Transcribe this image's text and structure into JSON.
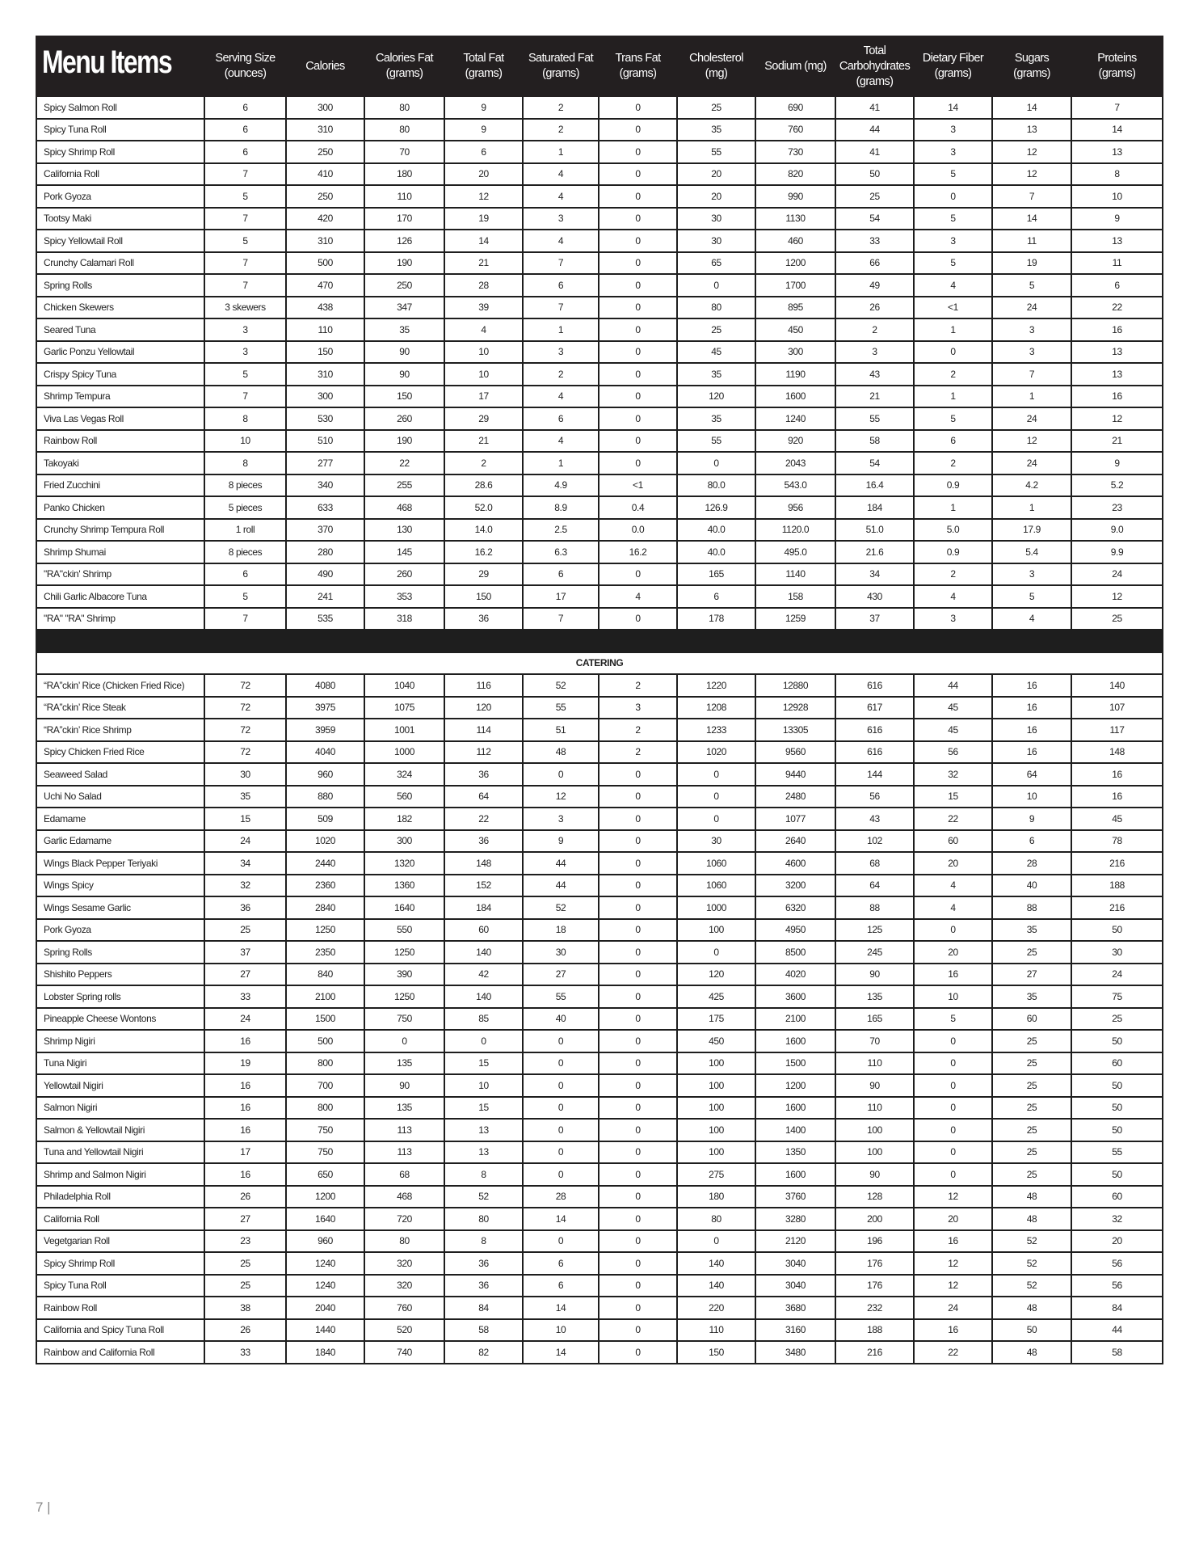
{
  "header": {
    "title": "Menu Items",
    "columns": [
      "Serving Size\n(ounces)",
      "Calories",
      "Calories Fat\n(grams)",
      "Total Fat\n(grams)",
      "Saturated Fat\n(grams)",
      "Trans Fat\n(grams)",
      "Cholesterol\n(mg)",
      "Sodium  (mg)",
      "Total\nCarbohydrates\n(grams)",
      "Dietary Fiber\n(grams)",
      "Sugars\n(grams)",
      "Proteins\n(grams)"
    ]
  },
  "menu_rows": [
    [
      "Spicy Salmon Roll",
      "6",
      "300",
      "80",
      "9",
      "2",
      "0",
      "25",
      "690",
      "41",
      "14",
      "14",
      "7"
    ],
    [
      "Spicy Tuna Roll",
      "6",
      "310",
      "80",
      "9",
      "2",
      "0",
      "35",
      "760",
      "44",
      "3",
      "13",
      "14"
    ],
    [
      "Spicy Shrimp Roll",
      "6",
      "250",
      "70",
      "6",
      "1",
      "0",
      "55",
      "730",
      "41",
      "3",
      "12",
      "13"
    ],
    [
      "California Roll",
      "7",
      "410",
      "180",
      "20",
      "4",
      "0",
      "20",
      "820",
      "50",
      "5",
      "12",
      "8"
    ],
    [
      "Pork Gyoza",
      "5",
      "250",
      "110",
      "12",
      "4",
      "0",
      "20",
      "990",
      "25",
      "0",
      "7",
      "10"
    ],
    [
      "Tootsy Maki",
      "7",
      "420",
      "170",
      "19",
      "3",
      "0",
      "30",
      "1130",
      "54",
      "5",
      "14",
      "9"
    ],
    [
      "Spicy Yellowtail Roll",
      "5",
      "310",
      "126",
      "14",
      "4",
      "0",
      "30",
      "460",
      "33",
      "3",
      "11",
      "13"
    ],
    [
      "Crunchy Calamari Roll",
      "7",
      "500",
      "190",
      "21",
      "7",
      "0",
      "65",
      "1200",
      "66",
      "5",
      "19",
      "11"
    ],
    [
      "Spring Rolls",
      "7",
      "470",
      "250",
      "28",
      "6",
      "0",
      "0",
      "1700",
      "49",
      "4",
      "5",
      "6"
    ],
    [
      "Chicken Skewers",
      "3 skewers",
      "438",
      "347",
      "39",
      "7",
      "0",
      "80",
      "895",
      "26",
      "<1",
      "24",
      "22"
    ],
    [
      "Seared Tuna",
      "3",
      "110",
      "35",
      "4",
      "1",
      "0",
      "25",
      "450",
      "2",
      "1",
      "3",
      "16"
    ],
    [
      "Garlic Ponzu Yellowtail",
      "3",
      "150",
      "90",
      "10",
      "3",
      "0",
      "45",
      "300",
      "3",
      "0",
      "3",
      "13"
    ],
    [
      "Crispy Spicy Tuna",
      "5",
      "310",
      "90",
      "10",
      "2",
      "0",
      "35",
      "1190",
      "43",
      "2",
      "7",
      "13"
    ],
    [
      "Shrimp Tempura",
      "7",
      "300",
      "150",
      "17",
      "4",
      "0",
      "120",
      "1600",
      "21",
      "1",
      "1",
      "16"
    ],
    [
      "Viva Las Vegas Roll",
      "8",
      "530",
      "260",
      "29",
      "6",
      "0",
      "35",
      "1240",
      "55",
      "5",
      "24",
      "12"
    ],
    [
      "Rainbow Roll",
      "10",
      "510",
      "190",
      "21",
      "4",
      "0",
      "55",
      "920",
      "58",
      "6",
      "12",
      "21"
    ],
    [
      "Takoyaki",
      "8",
      "277",
      "22",
      "2",
      "1",
      "0",
      "0",
      "2043",
      "54",
      "2",
      "24",
      "9"
    ],
    [
      "Fried Zucchini",
      "8 pieces",
      "340",
      "255",
      "28.6",
      "4.9",
      "<1",
      "80.0",
      "543.0",
      "16.4",
      "0.9",
      "4.2",
      "5.2"
    ],
    [
      "Panko Chicken",
      "5 pieces",
      "633",
      "468",
      "52.0",
      "8.9",
      "0.4",
      "126.9",
      "956",
      "184",
      "1",
      "1",
      "23"
    ],
    [
      "Crunchy Shrimp Tempura Roll",
      "1 roll",
      "370",
      "130",
      "14.0",
      "2.5",
      "0.0",
      "40.0",
      "1120.0",
      "51.0",
      "5.0",
      "17.9",
      "9.0"
    ],
    [
      "Shrimp Shumai",
      "8 pieces",
      "280",
      "145",
      "16.2",
      "6.3",
      "16.2",
      "40.0",
      "495.0",
      "21.6",
      "0.9",
      "5.4",
      "9.9"
    ],
    [
      "\"RA\"ckin' Shrimp",
      "6",
      "490",
      "260",
      "29",
      "6",
      "0",
      "165",
      "1140",
      "34",
      "2",
      "3",
      "24"
    ],
    [
      "Chili Garlic Albacore Tuna",
      "5",
      "241",
      "353",
      "150",
      "17",
      "4",
      "6",
      "158",
      "430",
      "4",
      "5",
      "12"
    ],
    [
      "\"RA\" \"RA\" Shrimp",
      "7",
      "535",
      "318",
      "36",
      "7",
      "0",
      "178",
      "1259",
      "37",
      "3",
      "4",
      "25"
    ]
  ],
  "catering": {
    "label": "CATERING",
    "rows": [
      [
        "“RA”ckin’ Rice (Chicken Fried Rice)",
        "72",
        "4080",
        "1040",
        "116",
        "52",
        "2",
        "1220",
        "12880",
        "616",
        "44",
        "16",
        "140"
      ],
      [
        "“RA”ckin’ Rice Steak",
        "72",
        "3975",
        "1075",
        "120",
        "55",
        "3",
        "1208",
        "12928",
        "617",
        "45",
        "16",
        "107"
      ],
      [
        "“RA”ckin’ Rice Shrimp",
        "72",
        "3959",
        "1001",
        "114",
        "51",
        "2",
        "1233",
        "13305",
        "616",
        "45",
        "16",
        "117"
      ],
      [
        "Spicy Chicken Fried Rice",
        "72",
        "4040",
        "1000",
        "112",
        "48",
        "2",
        "1020",
        "9560",
        "616",
        "56",
        "16",
        "148"
      ],
      [
        "Seaweed Salad",
        "30",
        "960",
        "324",
        "36",
        "0",
        "0",
        "0",
        "9440",
        "144",
        "32",
        "64",
        "16"
      ],
      [
        "Uchi No Salad",
        "35",
        "880",
        "560",
        "64",
        "12",
        "0",
        "0",
        "2480",
        "56",
        "15",
        "10",
        "16"
      ],
      [
        "Edamame",
        "15",
        "509",
        "182",
        "22",
        "3",
        "0",
        "0",
        "1077",
        "43",
        "22",
        "9",
        "45"
      ],
      [
        "Garlic Edamame",
        "24",
        "1020",
        "300",
        "36",
        "9",
        "0",
        "30",
        "2640",
        "102",
        "60",
        "6",
        "78"
      ],
      [
        "Wings Black Pepper Teriyaki",
        "34",
        "2440",
        "1320",
        "148",
        "44",
        "0",
        "1060",
        "4600",
        "68",
        "20",
        "28",
        "216"
      ],
      [
        "Wings Spicy",
        "32",
        "2360",
        "1360",
        "152",
        "44",
        "0",
        "1060",
        "3200",
        "64",
        "4",
        "40",
        "188"
      ],
      [
        "Wings Sesame Garlic",
        "36",
        "2840",
        "1640",
        "184",
        "52",
        "0",
        "1000",
        "6320",
        "88",
        "4",
        "88",
        "216"
      ],
      [
        "Pork Gyoza",
        "25",
        "1250",
        "550",
        "60",
        "18",
        "0",
        "100",
        "4950",
        "125",
        "0",
        "35",
        "50"
      ],
      [
        "Spring Rolls",
        "37",
        "2350",
        "1250",
        "140",
        "30",
        "0",
        "0",
        "8500",
        "245",
        "20",
        "25",
        "30"
      ],
      [
        "Shishito Peppers",
        "27",
        "840",
        "390",
        "42",
        "27",
        "0",
        "120",
        "4020",
        "90",
        "16",
        "27",
        "24"
      ],
      [
        "Lobster Spring rolls",
        "33",
        "2100",
        "1250",
        "140",
        "55",
        "0",
        "425",
        "3600",
        "135",
        "10",
        "35",
        "75"
      ],
      [
        "Pineapple Cheese Wontons",
        "24",
        "1500",
        "750",
        "85",
        "40",
        "0",
        "175",
        "2100",
        "165",
        "5",
        "60",
        "25"
      ],
      [
        "Shrimp Nigiri",
        "16",
        "500",
        "0",
        "0",
        "0",
        "0",
        "450",
        "1600",
        "70",
        "0",
        "25",
        "50"
      ],
      [
        "Tuna Nigiri",
        "19",
        "800",
        "135",
        "15",
        "0",
        "0",
        "100",
        "1500",
        "110",
        "0",
        "25",
        "60"
      ],
      [
        "Yellowtail Nigiri",
        "16",
        "700",
        "90",
        "10",
        "0",
        "0",
        "100",
        "1200",
        "90",
        "0",
        "25",
        "50"
      ],
      [
        "Salmon Nigiri",
        "16",
        "800",
        "135",
        "15",
        "0",
        "0",
        "100",
        "1600",
        "110",
        "0",
        "25",
        "50"
      ],
      [
        "Salmon & Yellowtail Nigiri",
        "16",
        "750",
        "113",
        "13",
        "0",
        "0",
        "100",
        "1400",
        "100",
        "0",
        "25",
        "50"
      ],
      [
        "Tuna and Yellowtail Nigiri",
        "17",
        "750",
        "113",
        "13",
        "0",
        "0",
        "100",
        "1350",
        "100",
        "0",
        "25",
        "55"
      ],
      [
        "Shrimp and Salmon Nigiri",
        "16",
        "650",
        "68",
        "8",
        "0",
        "0",
        "275",
        "1600",
        "90",
        "0",
        "25",
        "50"
      ],
      [
        "Philadelphia Roll",
        "26",
        "1200",
        "468",
        "52",
        "28",
        "0",
        "180",
        "3760",
        "128",
        "12",
        "48",
        "60"
      ],
      [
        "California Roll",
        "27",
        "1640",
        "720",
        "80",
        "14",
        "0",
        "80",
        "3280",
        "200",
        "20",
        "48",
        "32"
      ],
      [
        "Vegetgarian Roll",
        "23",
        "960",
        "80",
        "8",
        "0",
        "0",
        "0",
        "2120",
        "196",
        "16",
        "52",
        "20"
      ],
      [
        "Spicy Shrimp Roll",
        "25",
        "1240",
        "320",
        "36",
        "6",
        "0",
        "140",
        "3040",
        "176",
        "12",
        "52",
        "56"
      ],
      [
        "Spicy Tuna Roll",
        "25",
        "1240",
        "320",
        "36",
        "6",
        "0",
        "140",
        "3040",
        "176",
        "12",
        "52",
        "56"
      ],
      [
        "Rainbow Roll",
        "38",
        "2040",
        "760",
        "84",
        "14",
        "0",
        "220",
        "3680",
        "232",
        "24",
        "48",
        "84"
      ],
      [
        "California and Spicy Tuna Roll",
        "26",
        "1440",
        "520",
        "58",
        "10",
        "0",
        "110",
        "3160",
        "188",
        "16",
        "50",
        "44"
      ],
      [
        "Rainbow and California Roll",
        "33",
        "1840",
        "740",
        "82",
        "14",
        "0",
        "150",
        "3480",
        "216",
        "22",
        "48",
        "58"
      ]
    ]
  },
  "footer": {
    "page_number": "7 |"
  }
}
